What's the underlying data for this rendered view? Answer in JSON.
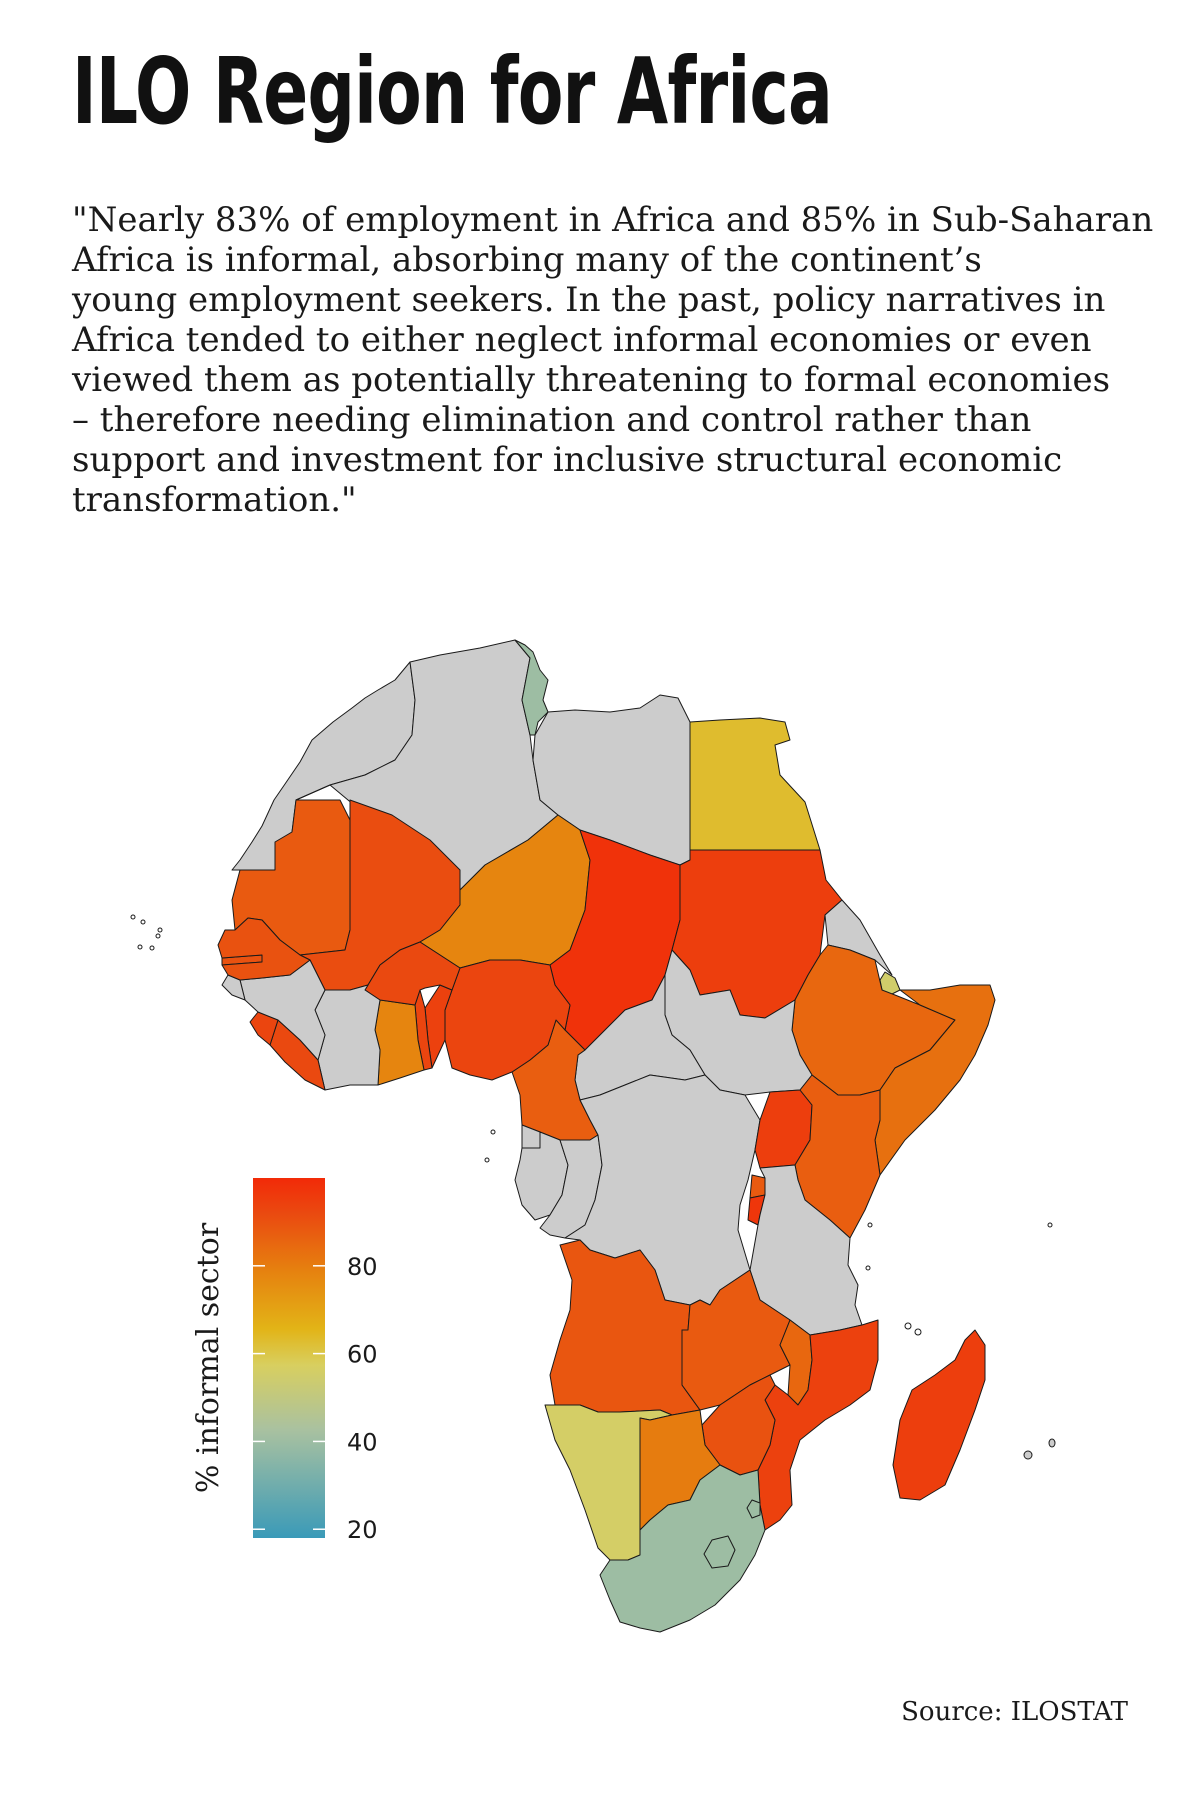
{
  "title": "ILO Region for Africa",
  "quote_lines": [
    "\"Nearly 83% of employment in Africa and 85% in Sub-Saharan",
    "Africa is informal, absorbing many of the continent’s",
    "young employment seekers. In the past, policy narratives in",
    "Africa tended to either neglect informal economies or even",
    "viewed them as potentially threatening to formal economies",
    "– therefore needing elimination and control rather than",
    "support and investment for inclusive structural economic",
    "transformation.\""
  ],
  "source": "Source: ILOSTAT",
  "legend": {
    "title": "% informal sector",
    "ticks": [
      "80",
      "60",
      "40",
      "20"
    ],
    "tick_values": [
      80,
      60,
      40,
      20
    ],
    "range": [
      18,
      100
    ],
    "gradient_colors": [
      "#3a9ab8",
      "#a9c1a0",
      "#d8cf60",
      "#e2b417",
      "#e6820f",
      "#ea4a10",
      "#f22a08"
    ]
  },
  "colors": {
    "no_data": "#cccccc",
    "border": "#1a1a1a"
  },
  "regions": [
    {
      "key": "morocco_ws",
      "value": null
    },
    {
      "key": "algeria",
      "value": null
    },
    {
      "key": "tunisia",
      "value": 40
    },
    {
      "key": "libya",
      "value": null
    },
    {
      "key": "egypt",
      "value": 63
    },
    {
      "key": "mauritania",
      "value": 88
    },
    {
      "key": "mali",
      "value": 91
    },
    {
      "key": "niger",
      "value": 78
    },
    {
      "key": "chad",
      "value": 98
    },
    {
      "key": "sudan",
      "value": 95
    },
    {
      "key": "eritrea",
      "value": null
    },
    {
      "key": "djibouti",
      "value": 55
    },
    {
      "key": "ethiopia",
      "value": 85
    },
    {
      "key": "somalia",
      "value": 83
    },
    {
      "key": "south_sudan",
      "value": null
    },
    {
      "key": "car",
      "value": null
    },
    {
      "key": "cameroon",
      "value": 87
    },
    {
      "key": "nigeria",
      "value": 93
    },
    {
      "key": "benin",
      "value": 94
    },
    {
      "key": "togo",
      "value": 93
    },
    {
      "key": "ghana",
      "value": 78
    },
    {
      "key": "burkina_faso",
      "value": 92
    },
    {
      "key": "cote_divoire",
      "value": null
    },
    {
      "key": "liberia",
      "value": 92
    },
    {
      "key": "sierra_leone",
      "value": 93
    },
    {
      "key": "guinea",
      "value": null
    },
    {
      "key": "guinea_bissau",
      "value": null
    },
    {
      "key": "gambia",
      "value": 90
    },
    {
      "key": "senegal",
      "value": 90
    },
    {
      "key": "eq_guinea",
      "value": null
    },
    {
      "key": "gabon",
      "value": null
    },
    {
      "key": "congo",
      "value": null
    },
    {
      "key": "drc",
      "value": null
    },
    {
      "key": "uganda",
      "value": 95
    },
    {
      "key": "kenya",
      "value": 87
    },
    {
      "key": "rwanda",
      "value": 88
    },
    {
      "key": "burundi",
      "value": 97
    },
    {
      "key": "tanzania",
      "value": null
    },
    {
      "key": "angola",
      "value": 89
    },
    {
      "key": "zambia",
      "value": 88
    },
    {
      "key": "malawi",
      "value": 85
    },
    {
      "key": "mozambique",
      "value": 94
    },
    {
      "key": "zimbabwe",
      "value": 90
    },
    {
      "key": "namibia",
      "value": 56
    },
    {
      "key": "botswana",
      "value": 80
    },
    {
      "key": "south_africa",
      "value": 40
    },
    {
      "key": "lesotho",
      "value": 40
    },
    {
      "key": "eswatini",
      "value": 40
    },
    {
      "key": "madagascar",
      "value": 95
    }
  ]
}
